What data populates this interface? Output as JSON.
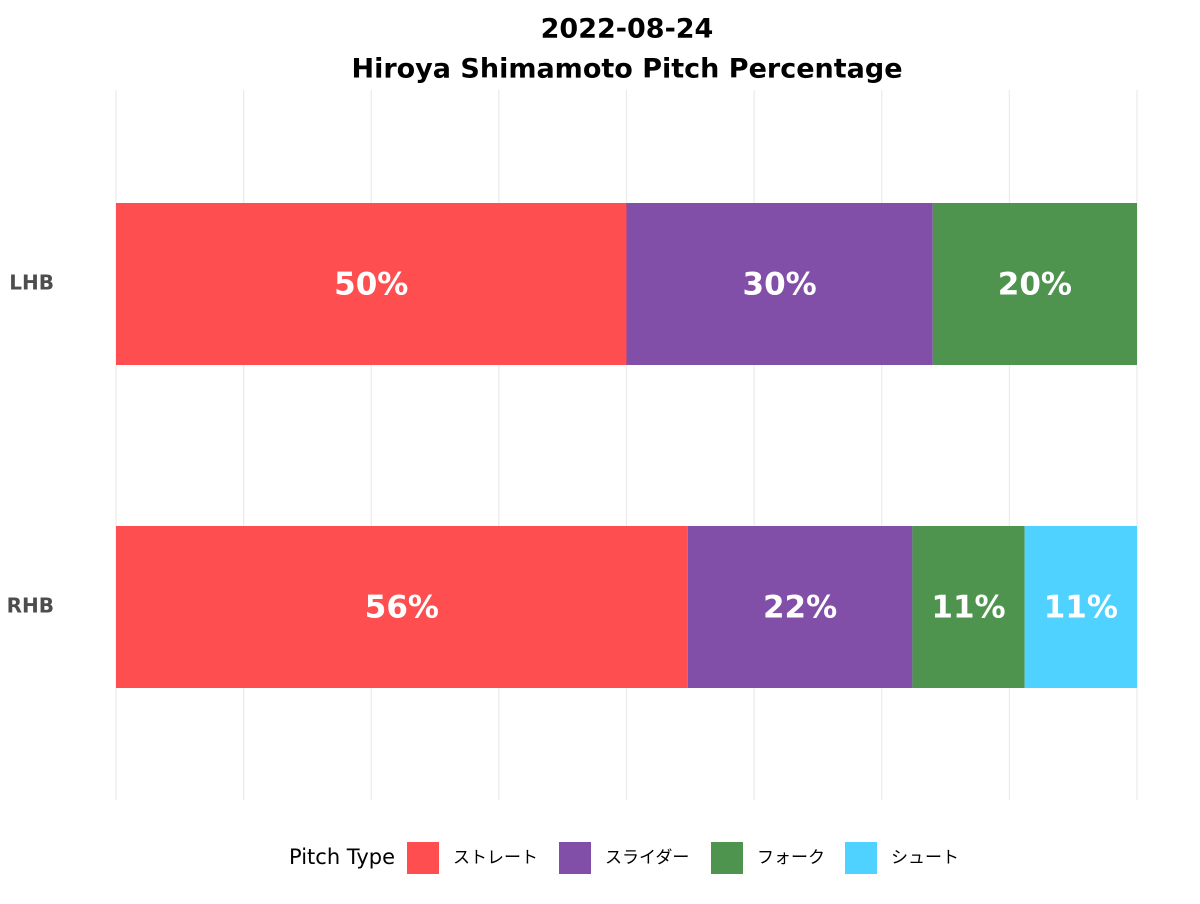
{
  "title_lines": [
    "2022-08-24",
    "Hiroya Shimamoto Pitch Percentage"
  ],
  "chart_data": {
    "type": "bar",
    "orientation": "horizontal",
    "stacked": true,
    "categories": [
      "LHB",
      "RHB"
    ],
    "series": [
      {
        "name": "ストレート",
        "color": "#ff4e50",
        "values": [
          50,
          56
        ],
        "labels": [
          "50%",
          "56%"
        ]
      },
      {
        "name": "スライダー",
        "color": "#814ea8",
        "values": [
          30,
          22
        ],
        "labels": [
          "30%",
          "22%"
        ]
      },
      {
        "name": "フォーク",
        "color": "#4e934e",
        "values": [
          20,
          11
        ],
        "labels": [
          "20%",
          "11%"
        ]
      },
      {
        "name": "シュート",
        "color": "#4fd2ff",
        "values": [
          0,
          11
        ],
        "labels": [
          "",
          "11%"
        ]
      }
    ],
    "xlim": [
      0,
      100
    ],
    "grid": true,
    "legend_title": "Pitch Type",
    "legend_position": "bottom"
  }
}
